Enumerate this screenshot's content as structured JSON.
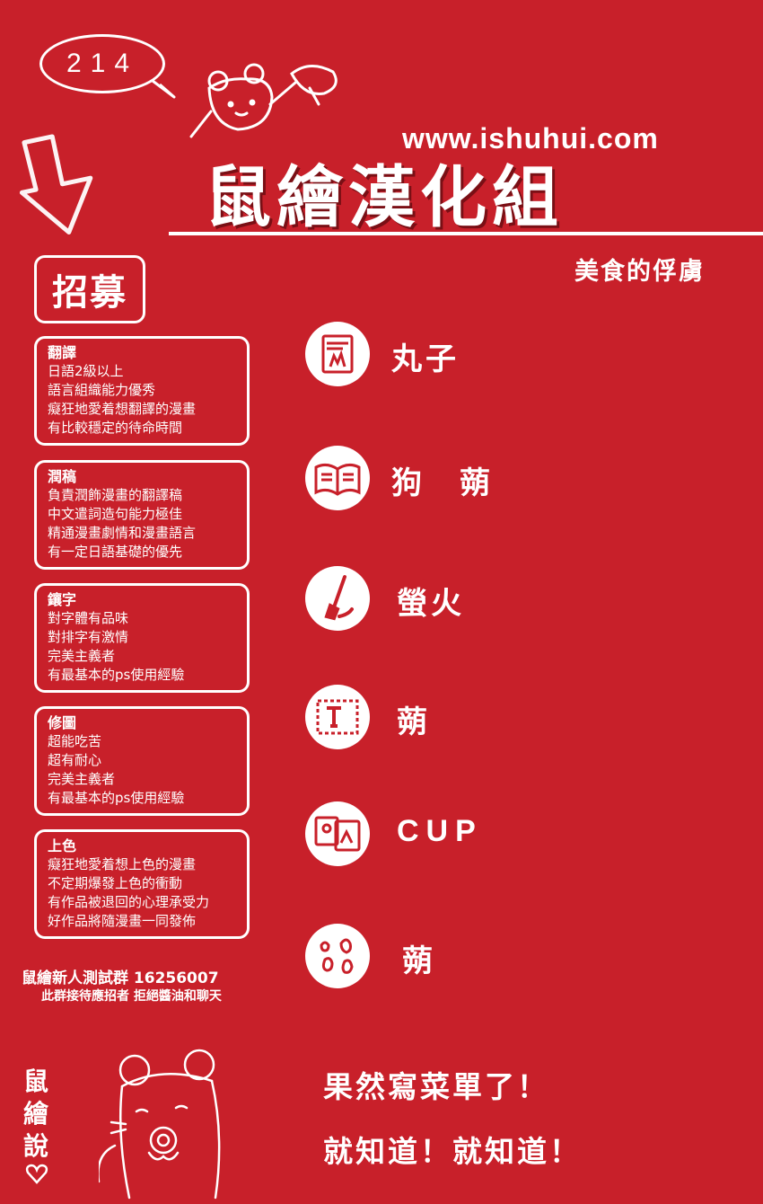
{
  "page_number": "214",
  "site_url": "www.ishuhui.com",
  "group_name": "鼠繪漢化組",
  "chapter_title": "美食的俘虜",
  "recruit_label": "招募",
  "roles": [
    {
      "title": "翻譯",
      "lines": [
        "日語2級以上",
        "語言組織能力優秀",
        "癡狂地愛着想翻譯的漫畫",
        "有比較穩定的待命時間"
      ]
    },
    {
      "title": "潤稿",
      "lines": [
        "負責潤飾漫畫的翻譯稿",
        "中文遣詞造句能力極佳",
        "精通漫畫劇情和漫畫語言",
        "有一定日語基礎的優先"
      ]
    },
    {
      "title": "鑲字",
      "lines": [
        "對字體有品味",
        "對排字有激情",
        "完美主義者",
        "有最基本的ps使用經驗"
      ]
    },
    {
      "title": "修圖",
      "lines": [
        "超能吃苦",
        "超有耐心",
        "完美主義者",
        "有最基本的ps使用經驗"
      ]
    },
    {
      "title": "上色",
      "lines": [
        "癡狂地愛着想上色的漫畫",
        "不定期爆發上色的衝動",
        "有作品被退回的心理承受力",
        "好作品將隨漫畫一同發佈"
      ]
    }
  ],
  "test_group": "鼠繪新人測試群  16256007",
  "test_group_note": "此群接待應招者 拒絕醬油和聊天",
  "staff": [
    {
      "icon": "jump-magazine-icon",
      "name": "丸子"
    },
    {
      "icon": "open-book-icon",
      "name": "狗　蒴"
    },
    {
      "icon": "brush-icon",
      "name": "螢火"
    },
    {
      "icon": "text-tool-icon",
      "name": "蒴"
    },
    {
      "icon": "image-edit-icon",
      "name": "CUP"
    },
    {
      "icon": "color-drops-icon",
      "name": "蒴"
    }
  ],
  "footer_side": "鼠繪說",
  "footer_lines": [
    "果然寫菜單了！",
    "就知道！就知道！"
  ],
  "colors": {
    "background": "#c8202a",
    "foreground": "#ffffff"
  }
}
